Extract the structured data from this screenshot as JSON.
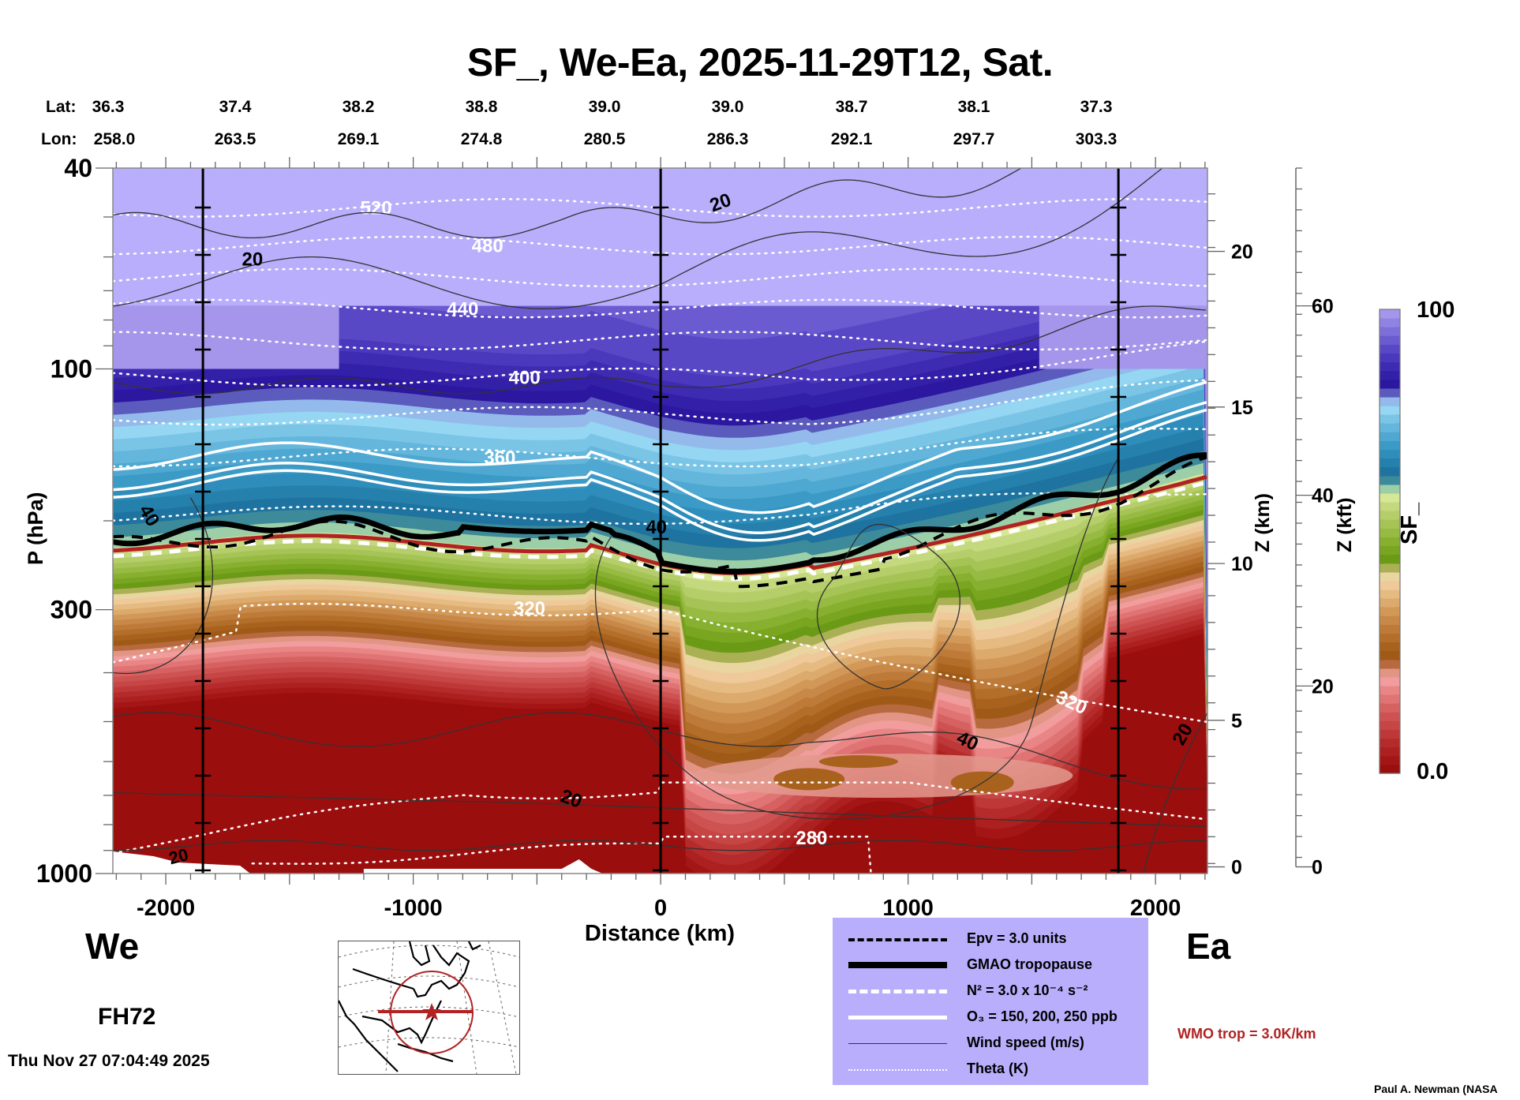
{
  "chart_data": {
    "type": "heatmap",
    "title": "SF_, We-Ea, 2025-11-29T12, Sat.",
    "xlabel": "Distance (km)",
    "ylabel": "P (hPa)",
    "ylabel_right_km": "Z (km)",
    "ylabel_right_kft": "Z (kft)",
    "colorbar_label": "SF_",
    "colorbar_range": [
      0.0,
      100
    ],
    "colorbar_min_label": "0.0",
    "colorbar_max_label": "100",
    "xlim": [
      -2214,
      2210
    ],
    "ylim_hpa": [
      1000,
      40
    ],
    "yscale": "log",
    "x_ticks": [
      -2000,
      -1000,
      0,
      1000,
      2000
    ],
    "x_tick_labels": [
      "-2000",
      "-1000",
      "0",
      "1000",
      "2000"
    ],
    "y_ticks": [
      40,
      100,
      300,
      1000
    ],
    "y_tick_labels": [
      "40",
      "100",
      "300",
      "1000"
    ],
    "z_km_ticks": [
      {
        "label": "20",
        "p_hpa": 58.5
      },
      {
        "label": "15",
        "p_hpa": 119
      },
      {
        "label": "10",
        "p_hpa": 243
      },
      {
        "label": "5",
        "p_hpa": 497
      },
      {
        "label": "0",
        "p_hpa": 970
      }
    ],
    "z_kft_ticks": [
      {
        "label": "60",
        "p_hpa": 75
      },
      {
        "label": "40",
        "p_hpa": 178
      },
      {
        "label": "20",
        "p_hpa": 425
      },
      {
        "label": "0",
        "p_hpa": 970
      }
    ],
    "latlon_header": {
      "lat_label": "Lat:",
      "lon_label": "Lon:",
      "columns": [
        {
          "lat": "36.3",
          "lon": "258.0"
        },
        {
          "lat": "37.4",
          "lon": "263.5"
        },
        {
          "lat": "38.2",
          "lon": "269.1"
        },
        {
          "lat": "38.8",
          "lon": "274.8"
        },
        {
          "lat": "39.0",
          "lon": "280.5"
        },
        {
          "lat": "39.0",
          "lon": "286.3"
        },
        {
          "lat": "38.7",
          "lon": "292.1"
        },
        {
          "lat": "38.1",
          "lon": "297.7"
        },
        {
          "lat": "37.3",
          "lon": "303.3"
        }
      ]
    },
    "vertical_markers_km": [
      -1850,
      0,
      1850
    ],
    "colorbar_colors": [
      "#9b0e0e",
      "#a41616",
      "#ad2020",
      "#b52b2b",
      "#be3838",
      "#c64545",
      "#ce5252",
      "#d66161",
      "#e07373",
      "#ea8585",
      "#f29d9d",
      "#e39585",
      "#b86a3f",
      "#a05a18",
      "#a8621e",
      "#b36e2a",
      "#bd7a38",
      "#c78848",
      "#d29858",
      "#dcaa6c",
      "#e6bb82",
      "#efc99a",
      "#e9d5a0",
      "#aab054",
      "#6a9a16",
      "#79a520",
      "#88b030",
      "#97bb42",
      "#a6c456",
      "#b5ce6a",
      "#c4d87e",
      "#d6e896",
      "#9ccfa8",
      "#3d8a9a",
      "#1e73a0",
      "#2580ac",
      "#2f8dbb",
      "#3c9ac6",
      "#4fa8d1",
      "#64b6dc",
      "#7ac4e6",
      "#95d6f2",
      "#94baeb",
      "#5b5bbe",
      "#2b17a0",
      "#3320a8",
      "#3d2bb2",
      "#4a38bd",
      "#5948c6",
      "#6a5bd0",
      "#7d6fd9",
      "#9082e2",
      "#a396eb"
    ],
    "sf_layers_description": "SF_ near 0 (dark red) in troposphere, rising through brown, green, blue to ~100 (lavender) in stratosphere",
    "contour_labels": {
      "theta_K": [
        "520",
        "480",
        "440",
        "400",
        "360",
        "320",
        "320",
        "280",
        "520",
        "480",
        "440",
        "400",
        "360"
      ],
      "wind_speed_ms": [
        "20",
        "40",
        "20",
        "40",
        "40",
        "20",
        "20",
        "20"
      ]
    },
    "legend": [
      {
        "style": "black-dashed",
        "label": "Epv = 3.0 units"
      },
      {
        "style": "black-thick",
        "label": "GMAO tropopause"
      },
      {
        "style": "white-dashed",
        "label": "N² = 3.0 x 10⁻⁴ s⁻²"
      },
      {
        "style": "white-solid",
        "label": "O₃ = 150, 200, 250 ppb"
      },
      {
        "style": "thin-dark",
        "label": "Wind speed (m/s)"
      },
      {
        "style": "white-dotted",
        "label": "Theta (K)"
      }
    ],
    "wmo_note": "WMO trop = 3.0K/km",
    "colors": {
      "wmo_tropopause": "#b22222",
      "legend_bg": "#b8aefc"
    }
  },
  "labels": {
    "west": "We",
    "east": "Ea",
    "forecast_hour": "FH72",
    "timestamp": "Thu Nov 27 07:04:49 2025",
    "credit": "Paul A. Newman (NASA"
  }
}
